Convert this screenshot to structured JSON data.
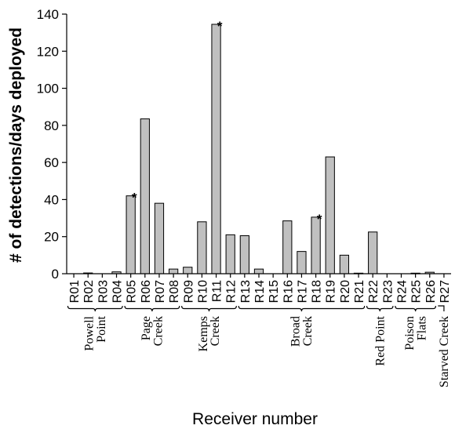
{
  "chart_data": {
    "type": "bar",
    "title": "",
    "xlabel": "Receiver number",
    "ylabel": "# of detections/days deployed",
    "ylim": [
      0,
      140
    ],
    "yticks": [
      0,
      20,
      40,
      60,
      80,
      100,
      120,
      140
    ],
    "grid": false,
    "categories": [
      "R01",
      "R02",
      "R03",
      "R04",
      "R05",
      "R06",
      "R07",
      "R08",
      "R09",
      "R10",
      "R11",
      "R12",
      "R13",
      "R14",
      "R15",
      "R16",
      "R17",
      "R18",
      "R19",
      "R20",
      "R21",
      "R22",
      "R23",
      "R24",
      "R25",
      "R26",
      "R27"
    ],
    "values": [
      0,
      0.4,
      0,
      1,
      42,
      83.5,
      38,
      2.5,
      3.5,
      28,
      134.5,
      21,
      20.5,
      2.5,
      0,
      28.5,
      12,
      30.5,
      63,
      10,
      0.3,
      22.5,
      0,
      0,
      0.3,
      0.8,
      0
    ],
    "starred": [
      "R05",
      "R11",
      "R18"
    ],
    "star_symbol": "*",
    "bar_color": "#c0c0c0",
    "bar_edge_color": "#000000",
    "site_groups": [
      {
        "label_lines": [
          "Powell",
          "Point"
        ],
        "from": "R01",
        "to": "R04"
      },
      {
        "label_lines": [
          "Page",
          "Creek"
        ],
        "from": "R05",
        "to": "R08"
      },
      {
        "label_lines": [
          "Kemps",
          "Creek"
        ],
        "from": "R09",
        "to": "R12"
      },
      {
        "label_lines": [
          "Broad",
          "Creek"
        ],
        "from": "R13",
        "to": "R21"
      },
      {
        "label_lines": [
          "Red Point"
        ],
        "from": "R22",
        "to": "R23"
      },
      {
        "label_lines": [
          "Poison",
          "Flats"
        ],
        "from": "R24",
        "to": "R26"
      },
      {
        "label_lines": [
          "Starved Creek"
        ],
        "from": "R27",
        "to": "R27"
      }
    ]
  }
}
